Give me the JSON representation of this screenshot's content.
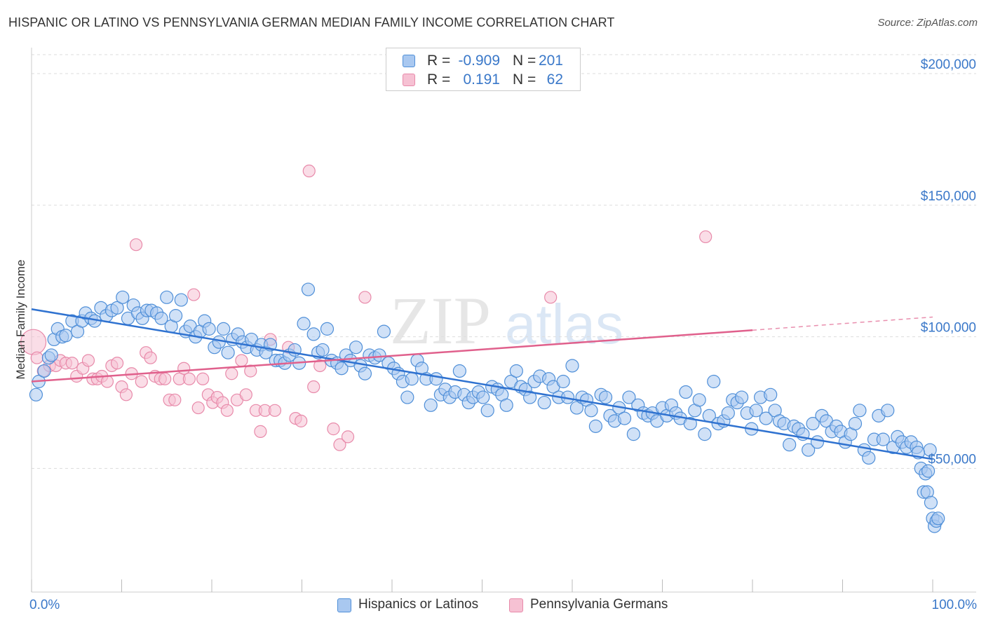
{
  "header": {
    "title": "HISPANIC OR LATINO VS PENNSYLVANIA GERMAN MEDIAN FAMILY INCOME CORRELATION CHART",
    "source": "Source: ZipAtlas.com"
  },
  "watermark": {
    "part1": "ZIP",
    "part2": "atlas"
  },
  "legend": {
    "rows": [
      {
        "r_label": "R =",
        "r_value": "-0.909",
        "n_label": "N =",
        "n_value": "201"
      },
      {
        "r_label": "R =",
        "r_value": "0.191",
        "n_label": "N =",
        "n_value": "62"
      }
    ]
  },
  "bottom_legend": {
    "items": [
      {
        "label": "Hispanics or Latinos"
      },
      {
        "label": "Pennsylvania Germans"
      }
    ]
  },
  "chart_data": {
    "type": "scatter",
    "ylabel": "Median Family Income",
    "xlabel": "",
    "x_tick_labels": [
      "0.0%",
      "100.0%"
    ],
    "y_tick_labels": [
      "$50,000",
      "$100,000",
      "$150,000",
      "$200,000"
    ],
    "y_ticks": [
      50000,
      100000,
      150000,
      200000
    ],
    "xlim": [
      0,
      100
    ],
    "ylim": [
      3000,
      208000
    ],
    "grid": "horizontal dashed",
    "colors": {
      "blue_fill": "#a9c8f0",
      "blue_stroke": "#4f8fd8",
      "blue_line": "#2f72d0",
      "pink_fill": "#f6c1d3",
      "pink_stroke": "#e88aaa",
      "pink_line": "#e0608c",
      "tick_text": "#3a78c9",
      "grid": "#dddddd"
    },
    "series": [
      {
        "name": "Hispanics or Latinos",
        "trend": {
          "x": [
            0,
            100
          ],
          "y": [
            110500,
            53500
          ]
        },
        "points": [
          [
            0.5,
            78000
          ],
          [
            0.8,
            83000
          ],
          [
            1.4,
            87000
          ],
          [
            1.9,
            92000
          ],
          [
            2.2,
            93000
          ],
          [
            2.5,
            99000
          ],
          [
            2.9,
            103000
          ],
          [
            3.4,
            100000
          ],
          [
            3.8,
            100500
          ],
          [
            4.5,
            106000
          ],
          [
            5.1,
            102000
          ],
          [
            5.6,
            106000
          ],
          [
            6.0,
            109000
          ],
          [
            6.6,
            107000
          ],
          [
            7.0,
            106000
          ],
          [
            7.7,
            111000
          ],
          [
            8.3,
            108000
          ],
          [
            8.9,
            110000
          ],
          [
            9.5,
            111000
          ],
          [
            10.1,
            115000
          ],
          [
            10.7,
            107000
          ],
          [
            11.3,
            112000
          ],
          [
            11.8,
            109000
          ],
          [
            12.3,
            107000
          ],
          [
            12.8,
            110000
          ],
          [
            13.3,
            110000
          ],
          [
            13.9,
            109000
          ],
          [
            14.4,
            107000
          ],
          [
            15.0,
            115000
          ],
          [
            15.5,
            104000
          ],
          [
            16.0,
            108000
          ],
          [
            16.6,
            114000
          ],
          [
            17.1,
            102000
          ],
          [
            17.6,
            104000
          ],
          [
            18.2,
            100000
          ],
          [
            18.7,
            102000
          ],
          [
            19.2,
            106000
          ],
          [
            19.7,
            103000
          ],
          [
            20.3,
            96000
          ],
          [
            20.8,
            98000
          ],
          [
            21.3,
            103000
          ],
          [
            21.8,
            94000
          ],
          [
            22.3,
            99000
          ],
          [
            22.9,
            101000
          ],
          [
            23.4,
            98000
          ],
          [
            23.9,
            96000
          ],
          [
            24.4,
            99000
          ],
          [
            25.0,
            95000
          ],
          [
            25.5,
            97000
          ],
          [
            26.0,
            94000
          ],
          [
            26.5,
            97000
          ],
          [
            27.1,
            91000
          ],
          [
            27.6,
            91000
          ],
          [
            28.1,
            90000
          ],
          [
            28.6,
            93000
          ],
          [
            29.2,
            95000
          ],
          [
            29.7,
            90000
          ],
          [
            30.2,
            105000
          ],
          [
            30.7,
            118000
          ],
          [
            31.3,
            101000
          ],
          [
            31.8,
            94000
          ],
          [
            32.3,
            95000
          ],
          [
            32.8,
            103000
          ],
          [
            33.3,
            91000
          ],
          [
            33.9,
            90000
          ],
          [
            34.4,
            88000
          ],
          [
            34.9,
            93000
          ],
          [
            35.4,
            91000
          ],
          [
            36.0,
            96000
          ],
          [
            36.5,
            89000
          ],
          [
            37.0,
            86000
          ],
          [
            37.5,
            93000
          ],
          [
            38.1,
            92000
          ],
          [
            38.6,
            93000
          ],
          [
            39.1,
            102000
          ],
          [
            39.6,
            90000
          ],
          [
            40.2,
            88000
          ],
          [
            40.7,
            86000
          ],
          [
            41.2,
            83000
          ],
          [
            41.7,
            77000
          ],
          [
            42.2,
            84000
          ],
          [
            42.8,
            91000
          ],
          [
            43.3,
            88000
          ],
          [
            43.8,
            84000
          ],
          [
            44.3,
            74000
          ],
          [
            44.9,
            84000
          ],
          [
            45.4,
            78000
          ],
          [
            45.9,
            80000
          ],
          [
            46.4,
            77000
          ],
          [
            47.0,
            79000
          ],
          [
            47.5,
            87000
          ],
          [
            48.0,
            78000
          ],
          [
            48.5,
            75000
          ],
          [
            49.0,
            77000
          ],
          [
            49.6,
            79000
          ],
          [
            50.1,
            77000
          ],
          [
            50.6,
            72000
          ],
          [
            51.1,
            81000
          ],
          [
            51.7,
            80000
          ],
          [
            52.2,
            78000
          ],
          [
            52.7,
            74000
          ],
          [
            53.2,
            83000
          ],
          [
            53.8,
            87000
          ],
          [
            54.3,
            81000
          ],
          [
            54.8,
            80000
          ],
          [
            55.3,
            77000
          ],
          [
            55.8,
            83000
          ],
          [
            56.4,
            85000
          ],
          [
            56.9,
            75000
          ],
          [
            57.4,
            84000
          ],
          [
            57.9,
            81000
          ],
          [
            58.5,
            77000
          ],
          [
            59.0,
            83000
          ],
          [
            59.5,
            77000
          ],
          [
            60.0,
            89000
          ],
          [
            60.5,
            73000
          ],
          [
            61.1,
            77000
          ],
          [
            61.6,
            76000
          ],
          [
            62.1,
            72000
          ],
          [
            62.6,
            66000
          ],
          [
            63.2,
            78000
          ],
          [
            63.7,
            77000
          ],
          [
            64.2,
            70000
          ],
          [
            64.7,
            68000
          ],
          [
            65.2,
            73000
          ],
          [
            65.8,
            69000
          ],
          [
            66.3,
            77000
          ],
          [
            66.8,
            63000
          ],
          [
            67.3,
            74000
          ],
          [
            67.9,
            71000
          ],
          [
            68.4,
            70000
          ],
          [
            68.9,
            71000
          ],
          [
            69.4,
            68000
          ],
          [
            70.0,
            73000
          ],
          [
            70.5,
            70000
          ],
          [
            71.0,
            74000
          ],
          [
            71.5,
            71000
          ],
          [
            72.0,
            69000
          ],
          [
            72.6,
            79000
          ],
          [
            73.1,
            67000
          ],
          [
            73.6,
            72000
          ],
          [
            74.1,
            76000
          ],
          [
            74.7,
            63000
          ],
          [
            75.2,
            70000
          ],
          [
            75.7,
            83000
          ],
          [
            76.2,
            67000
          ],
          [
            76.8,
            68000
          ],
          [
            77.3,
            71000
          ],
          [
            77.8,
            76000
          ],
          [
            78.3,
            75000
          ],
          [
            78.8,
            77000
          ],
          [
            79.4,
            71000
          ],
          [
            79.9,
            65000
          ],
          [
            80.4,
            72000
          ],
          [
            80.9,
            77000
          ],
          [
            81.5,
            69000
          ],
          [
            82.0,
            78000
          ],
          [
            82.5,
            72000
          ],
          [
            83.0,
            68000
          ],
          [
            83.5,
            67000
          ],
          [
            84.1,
            59000
          ],
          [
            84.6,
            66000
          ],
          [
            85.1,
            65000
          ],
          [
            85.6,
            63000
          ],
          [
            86.2,
            57000
          ],
          [
            86.7,
            67000
          ],
          [
            87.2,
            60000
          ],
          [
            87.7,
            70000
          ],
          [
            88.2,
            68000
          ],
          [
            88.8,
            64000
          ],
          [
            89.3,
            66000
          ],
          [
            89.8,
            64000
          ],
          [
            90.3,
            60000
          ],
          [
            90.9,
            63000
          ],
          [
            91.4,
            67000
          ],
          [
            91.9,
            72000
          ],
          [
            92.4,
            57000
          ],
          [
            92.9,
            54000
          ],
          [
            93.5,
            61000
          ],
          [
            94.0,
            70000
          ],
          [
            94.5,
            61000
          ],
          [
            95.0,
            72000
          ],
          [
            95.6,
            58000
          ],
          [
            96.1,
            62000
          ],
          [
            96.6,
            60000
          ],
          [
            97.1,
            58000
          ],
          [
            97.6,
            60000
          ],
          [
            98.2,
            58000
          ],
          [
            98.7,
            50000
          ],
          [
            99.2,
            48000
          ],
          [
            99.5,
            49000
          ],
          [
            99.7,
            57000
          ],
          [
            98.4,
            56000
          ],
          [
            99.0,
            41000
          ],
          [
            99.4,
            41000
          ],
          [
            99.8,
            37000
          ],
          [
            100.0,
            31000
          ],
          [
            100.2,
            28000
          ],
          [
            100.4,
            30000
          ],
          [
            100.6,
            31000
          ]
        ]
      },
      {
        "name": "Pennsylvania Germans",
        "trend": {
          "x": [
            0,
            80
          ],
          "y": [
            83000,
            102500
          ],
          "dash_to": [
            100,
            107500
          ]
        },
        "points": [
          [
            0.2,
            98000
          ],
          [
            0.6,
            92000
          ],
          [
            1.3,
            87000
          ],
          [
            2.0,
            89000
          ],
          [
            2.7,
            89000
          ],
          [
            3.2,
            91000
          ],
          [
            3.8,
            90000
          ],
          [
            4.5,
            90000
          ],
          [
            5.0,
            85000
          ],
          [
            5.7,
            88000
          ],
          [
            6.3,
            91000
          ],
          [
            6.8,
            84000
          ],
          [
            7.3,
            84000
          ],
          [
            7.8,
            85000
          ],
          [
            8.4,
            83000
          ],
          [
            8.9,
            89000
          ],
          [
            9.5,
            90000
          ],
          [
            10.0,
            81000
          ],
          [
            10.5,
            78000
          ],
          [
            11.1,
            86000
          ],
          [
            11.6,
            135000
          ],
          [
            12.2,
            83000
          ],
          [
            12.7,
            94000
          ],
          [
            13.2,
            92000
          ],
          [
            13.7,
            85000
          ],
          [
            14.3,
            84000
          ],
          [
            14.8,
            84000
          ],
          [
            15.3,
            76000
          ],
          [
            15.9,
            76000
          ],
          [
            16.4,
            84000
          ],
          [
            16.9,
            88000
          ],
          [
            17.5,
            84000
          ],
          [
            18.0,
            116000
          ],
          [
            18.5,
            73000
          ],
          [
            19.0,
            84000
          ],
          [
            19.6,
            78000
          ],
          [
            20.1,
            75000
          ],
          [
            20.6,
            77000
          ],
          [
            21.2,
            75000
          ],
          [
            21.7,
            72000
          ],
          [
            22.2,
            86000
          ],
          [
            22.8,
            76000
          ],
          [
            23.3,
            91000
          ],
          [
            23.8,
            78000
          ],
          [
            24.3,
            87000
          ],
          [
            24.9,
            72000
          ],
          [
            25.4,
            64000
          ],
          [
            25.9,
            72000
          ],
          [
            26.5,
            99000
          ],
          [
            27.0,
            72000
          ],
          [
            28.5,
            96000
          ],
          [
            29.3,
            69000
          ],
          [
            29.9,
            68000
          ],
          [
            30.8,
            163000
          ],
          [
            31.3,
            81000
          ],
          [
            32.0,
            89000
          ],
          [
            33.5,
            65000
          ],
          [
            34.2,
            59000
          ],
          [
            35.1,
            62000
          ],
          [
            37.0,
            115000
          ],
          [
            57.6,
            115000
          ],
          [
            74.8,
            138000
          ]
        ]
      }
    ]
  }
}
